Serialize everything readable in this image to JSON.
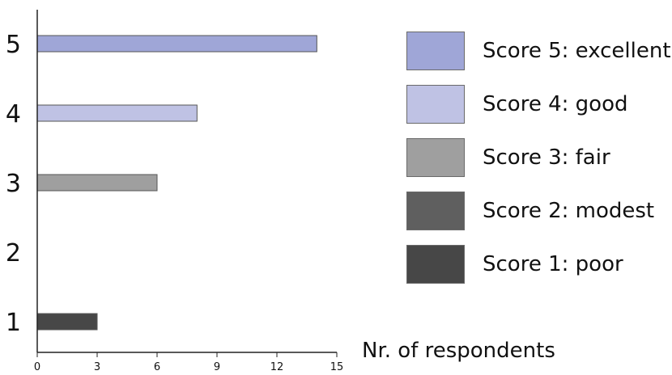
{
  "chart_data": {
    "type": "bar",
    "orientation": "horizontal",
    "categories": [
      "1",
      "2",
      "3",
      "4",
      "5"
    ],
    "values": [
      3,
      0,
      6,
      8,
      14
    ],
    "colors": [
      "#474747",
      "#5f5f5f",
      "#9f9f9f",
      "#bfc2e4",
      "#9fa6d7"
    ],
    "xlabel": "Nr. of respondents",
    "ylabel": "",
    "title": "",
    "xlim": [
      0,
      15
    ],
    "xticks": [
      "0",
      "3",
      "6",
      "9",
      "12",
      "15"
    ],
    "grid": false,
    "legend_position": "right",
    "legend": [
      {
        "label": "Score 5: excellent",
        "color": "#9fa6d7"
      },
      {
        "label": "Score 4: good",
        "color": "#bfc2e4"
      },
      {
        "label": "Score 3: fair",
        "color": "#9f9f9f"
      },
      {
        "label": "Score 2: modest",
        "color": "#5f5f5f"
      },
      {
        "label": "Score 1: poor",
        "color": "#474747"
      }
    ]
  }
}
